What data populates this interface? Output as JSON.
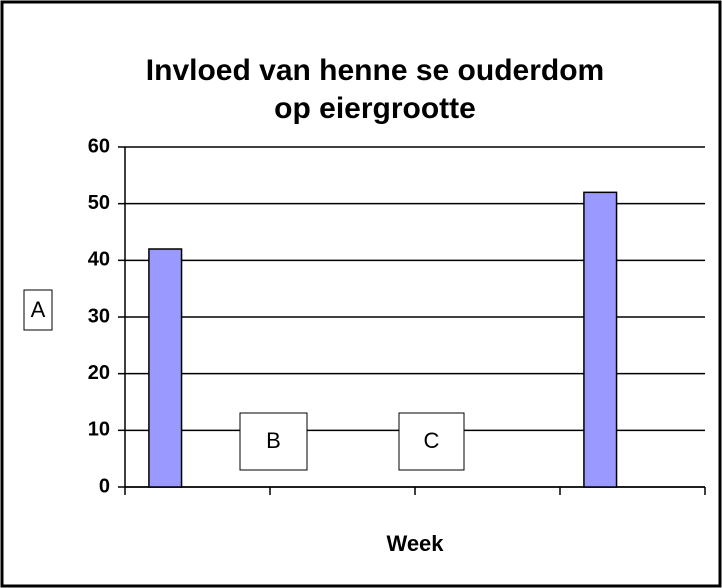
{
  "chart_data": {
    "type": "bar",
    "title": [
      "Invloed van henne se ouderdom",
      "op eiergrootte"
    ],
    "xlabel": "Week",
    "ylabel": "A",
    "annotations": [
      "B",
      "C"
    ],
    "categories": [
      null,
      null,
      null,
      null
    ],
    "values": [
      42,
      null,
      null,
      52
    ],
    "color": "#9999ff",
    "ylim": [
      0,
      60
    ],
    "yticks": [
      0,
      10,
      20,
      30,
      40,
      50,
      60
    ],
    "grid": true
  }
}
